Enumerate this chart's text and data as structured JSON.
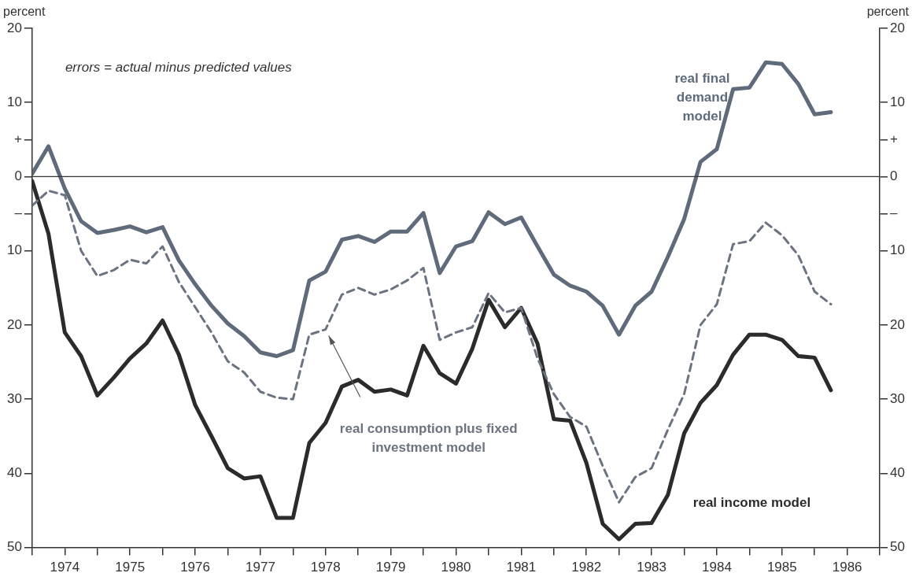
{
  "chart_data": {
    "type": "line",
    "x": [
      1974,
      1974.25,
      1974.5,
      1974.75,
      1975,
      1975.25,
      1975.5,
      1975.75,
      1976,
      1976.25,
      1976.5,
      1976.75,
      1977,
      1977.25,
      1977.5,
      1977.75,
      1978,
      1978.25,
      1978.5,
      1978.75,
      1979,
      1979.25,
      1979.5,
      1979.75,
      1980,
      1980.25,
      1980.5,
      1980.75,
      1981,
      1981.25,
      1981.5,
      1981.75,
      1982,
      1982.25,
      1982.5,
      1982.75,
      1983,
      1983.25,
      1983.5,
      1983.75,
      1984,
      1984.25,
      1984.5,
      1984.75,
      1985,
      1985.25,
      1985.5,
      1985.75,
      1986,
      1986.25
    ],
    "series": [
      {
        "name": "real final demand model",
        "color": "#5f6b7a",
        "values": [
          0.4,
          4.1,
          -1.6,
          -6,
          -7.6,
          -7.2,
          -6.7,
          -7.5,
          -6.8,
          -11.3,
          -14.5,
          -17.4,
          -19.8,
          -21.5,
          -23.7,
          -24.2,
          -23.4,
          -14,
          -12.8,
          -8.5,
          -8,
          -8.8,
          -7.4,
          -7.4,
          -4.9,
          -13,
          -9.4,
          -8.7,
          -4.8,
          -6.4,
          -5.5,
          -9.4,
          -13.2,
          -14.7,
          -15.5,
          -17.4,
          -21.3,
          -17.4,
          -15.5,
          -10.8,
          -5.7,
          2,
          3.7,
          11.8,
          12,
          15.4,
          15.2,
          12.5,
          8.4,
          8.7
        ]
      },
      {
        "name": "real consumption plus fixed investment model",
        "color": "#6b7280",
        "line_style": "dashed",
        "values": [
          -3.9,
          -1.9,
          -2.5,
          -10,
          -13.4,
          -12.6,
          -11.2,
          -11.7,
          -9.4,
          -14.2,
          -17.6,
          -21,
          -24.9,
          -26.4,
          -29,
          -29.8,
          -30,
          -21.3,
          -20.6,
          -15.9,
          -15,
          -15.9,
          -15.2,
          -14,
          -12.3,
          -22,
          -21,
          -20.3,
          -15.7,
          -18.3,
          -17.7,
          -24.5,
          -29.3,
          -32.4,
          -33.7,
          -39,
          -43.9,
          -40.5,
          -39.3,
          -34.1,
          -29.3,
          -20,
          -17.2,
          -9.1,
          -8.7,
          -6.2,
          -7.9,
          -10.6,
          -15.5,
          -17.2
        ]
      },
      {
        "name": "real income model",
        "color": "#2b2b2b",
        "values": [
          -0.6,
          -7.7,
          -21,
          -24.2,
          -29.5,
          -27.1,
          -24.5,
          -22.5,
          -19.4,
          -24,
          -30.8,
          -35,
          -39.3,
          -40.7,
          -40.4,
          -46,
          -46,
          -35.9,
          -33.2,
          -28.3,
          -27.4,
          -29,
          -28.7,
          -29.5,
          -22.8,
          -26.5,
          -27.9,
          -23.2,
          -16.6,
          -20.3,
          -17.7,
          -22.5,
          -32.7,
          -32.9,
          -38.6,
          -46.8,
          -48.9,
          -46.8,
          -46.7,
          -42.9,
          -34.6,
          -30.5,
          -28.1,
          -24,
          -21.3,
          -21.3,
          -22,
          -24.2,
          -24.4,
          -28.8
        ]
      }
    ],
    "ylabel": "percent",
    "y2label": "percent",
    "annotations": [
      "errors = actual minus predicted values"
    ],
    "xlim": [
      1974,
      1987
    ],
    "xticks": [
      {
        "value": 1974,
        "label": null
      },
      {
        "value": 1974.5,
        "label": "1974"
      },
      {
        "value": 1975,
        "label": null
      },
      {
        "value": 1975.5,
        "label": "1975"
      },
      {
        "value": 1976,
        "label": null
      },
      {
        "value": 1976.5,
        "label": "1976"
      },
      {
        "value": 1977,
        "label": null
      },
      {
        "value": 1977.5,
        "label": "1977"
      },
      {
        "value": 1978,
        "label": null
      },
      {
        "value": 1978.5,
        "label": "1978"
      },
      {
        "value": 1979,
        "label": null
      },
      {
        "value": 1979.5,
        "label": "1979"
      },
      {
        "value": 1980,
        "label": null
      },
      {
        "value": 1980.5,
        "label": "1980"
      },
      {
        "value": 1981,
        "label": null
      },
      {
        "value": 1981.5,
        "label": "1981"
      },
      {
        "value": 1982,
        "label": null
      },
      {
        "value": 1982.5,
        "label": "1982"
      },
      {
        "value": 1983,
        "label": null
      },
      {
        "value": 1983.5,
        "label": "1983"
      },
      {
        "value": 1984,
        "label": null
      },
      {
        "value": 1984.5,
        "label": "1984"
      },
      {
        "value": 1985,
        "label": null
      },
      {
        "value": 1985.5,
        "label": "1985"
      },
      {
        "value": 1986,
        "label": null
      },
      {
        "value": 1986.5,
        "label": "1986"
      },
      {
        "value": 1987,
        "label": null
      }
    ],
    "ylim": [
      -50,
      20
    ],
    "yticks": [
      20,
      10,
      {
        "value": 5,
        "label": "+"
      },
      0,
      {
        "value": -5,
        "label": "–"
      },
      {
        "value": -10,
        "label": "10"
      },
      {
        "value": -20,
        "label": "20"
      },
      {
        "value": -30,
        "label": "30"
      },
      {
        "value": -40,
        "label": "40"
      },
      {
        "value": -50,
        "label": "50"
      }
    ],
    "y2lim": [
      -50,
      20
    ],
    "y2ticks": [
      20,
      10,
      {
        "value": 5,
        "label": "+"
      },
      0,
      {
        "value": -5,
        "label": "–"
      },
      {
        "value": -10,
        "label": "10"
      },
      {
        "value": -20,
        "label": "20"
      },
      {
        "value": -30,
        "label": "30"
      },
      {
        "value": -40,
        "label": "40"
      },
      {
        "value": -50,
        "label": "50"
      }
    ],
    "ref_lines": [
      {
        "axis": "y",
        "value": 0,
        "color": "#333333"
      }
    ],
    "grid": false,
    "legend": false
  }
}
